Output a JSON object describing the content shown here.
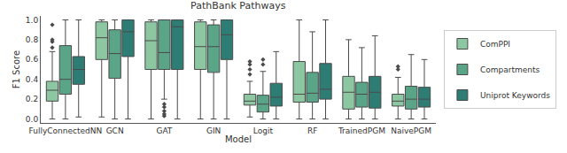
{
  "chart_data": {
    "type": "box",
    "title": "PathBank Pathways",
    "x_label": "Model",
    "y_label": "F1 Score",
    "categories": [
      "FullyConnectedNN",
      "GCN",
      "GAT",
      "GIN",
      "Logit",
      "RF",
      "TrainedPGM",
      "NaivePGM"
    ],
    "ylim": [
      -0.04,
      1.04
    ],
    "yticks": [
      {
        "value": 0,
        "label": "0.0"
      },
      {
        "value": 0.2,
        "label": "0.2"
      },
      {
        "value": 0.4,
        "label": "0.4"
      },
      {
        "value": 0.6,
        "label": "0.6"
      },
      {
        "value": 0.8,
        "label": "0.8"
      },
      {
        "value": 1,
        "label": "1.0"
      }
    ],
    "grid": false,
    "legend": "right",
    "series": [
      {
        "name": "ComPPI",
        "color": "#8cc7a1",
        "lowerfence": [
          0.0,
          0.02,
          0.0,
          0.0,
          0.02,
          0.0,
          0.0,
          0.0
        ],
        "q1": [
          0.18,
          0.6,
          0.5,
          0.5,
          0.14,
          0.17,
          0.1,
          0.13
        ],
        "median": [
          0.29,
          0.82,
          0.79,
          0.73,
          0.18,
          0.25,
          0.27,
          0.18
        ],
        "q3": [
          0.38,
          0.98,
          0.98,
          0.98,
          0.25,
          0.58,
          0.43,
          0.25
        ],
        "upperfence": [
          0.68,
          1.0,
          1.0,
          1.0,
          0.38,
          1.0,
          0.8,
          0.42
        ],
        "outliers": [
          [
            0.72,
            0.78,
            0.8,
            0.95
          ],
          [],
          [],
          [],
          [
            0.45,
            0.5,
            0.55,
            0.58
          ],
          [],
          [],
          [
            0.5,
            0.53
          ]
        ]
      },
      {
        "name": "Compartments",
        "color": "#5aa588",
        "lowerfence": [
          0.0,
          0.0,
          0.2,
          0.0,
          0.0,
          0.0,
          0.0,
          0.0
        ],
        "q1": [
          0.25,
          0.41,
          0.5,
          0.47,
          0.07,
          0.17,
          0.12,
          0.1
        ],
        "median": [
          0.4,
          0.66,
          0.67,
          0.73,
          0.15,
          0.26,
          0.25,
          0.2
        ],
        "q3": [
          0.74,
          0.9,
          1.0,
          0.95,
          0.24,
          0.47,
          0.37,
          0.33
        ],
        "upperfence": [
          1.0,
          1.0,
          1.0,
          1.0,
          0.48,
          0.88,
          0.72,
          0.65
        ],
        "outliers": [
          [],
          [],
          [
            0.15,
            0.12,
            0.08,
            0.05,
            0.03
          ],
          [],
          [
            0.55,
            0.6
          ],
          [],
          [],
          []
        ]
      },
      {
        "name": "Uniprot Keywords",
        "color": "#2e7d75",
        "lowerfence": [
          0.02,
          0.0,
          0.0,
          0.0,
          0.0,
          0.0,
          0.0,
          0.0
        ],
        "q1": [
          0.35,
          0.63,
          0.5,
          0.6,
          0.13,
          0.2,
          0.11,
          0.12
        ],
        "median": [
          0.5,
          0.88,
          0.93,
          0.85,
          0.22,
          0.3,
          0.27,
          0.2
        ],
        "q3": [
          0.63,
          1.0,
          1.0,
          1.0,
          0.36,
          0.56,
          0.43,
          0.32
        ],
        "upperfence": [
          1.0,
          1.0,
          1.0,
          1.0,
          0.68,
          1.0,
          0.84,
          0.6
        ],
        "outliers": [
          [],
          [],
          [],
          [],
          [],
          [],
          [],
          []
        ]
      }
    ]
  }
}
